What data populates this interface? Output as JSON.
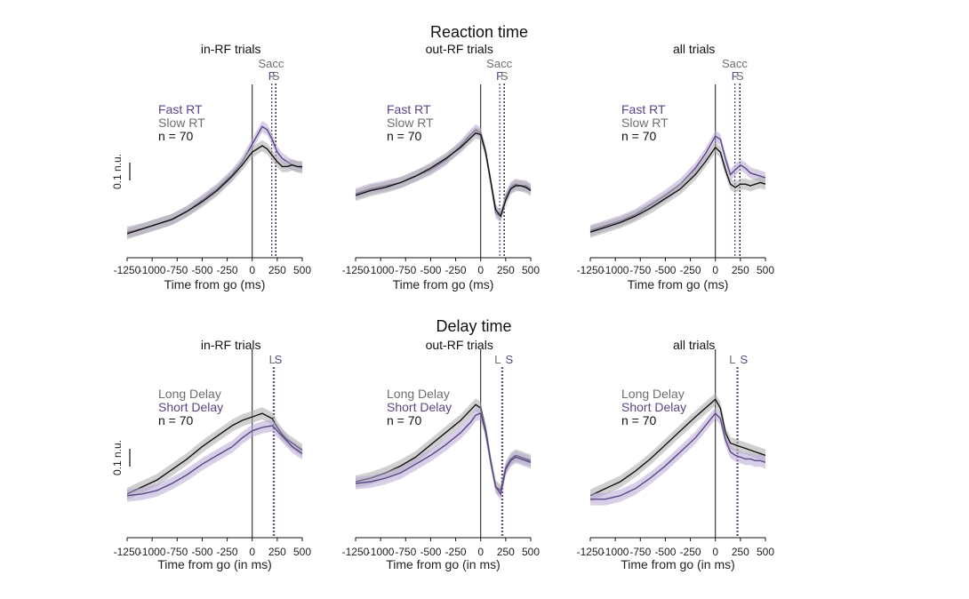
{
  "colors": {
    "fast": "#5b4585",
    "slow": "#6e6e6e",
    "black": "#111111",
    "band_fast": "#b7a6d4",
    "band_slow": "#a9a9a9"
  },
  "rows": [
    {
      "title": "Reaction time",
      "scale_label": "0.1 n.u."
    },
    {
      "title": "Delay time",
      "scale_label": "0.1 n.u."
    }
  ],
  "chart_data": [
    {
      "type": "line",
      "title": "in-RF trials",
      "row": 0,
      "xlabel": "Time from go (ms)",
      "xlim": [
        -1250,
        500
      ],
      "xticks": [
        -1250,
        -1000,
        -750,
        -500,
        -250,
        0,
        250,
        500
      ],
      "xtick_labels": [
        "-1250",
        "-1000",
        "-750",
        "-500",
        "-250",
        "0",
        "250",
        "500"
      ],
      "vlines": [
        {
          "x": 0,
          "style": "solid"
        },
        {
          "x": 195,
          "style": "dotted",
          "color": "fast"
        },
        {
          "x": 235,
          "style": "dotted",
          "color": "black"
        }
      ],
      "markers": {
        "header": "Sacc",
        "items": [
          {
            "label": "F",
            "x": 195,
            "color": "fast"
          },
          {
            "label": "S",
            "x": 235,
            "color": "slow"
          }
        ]
      },
      "legend": [
        {
          "text": "Fast RT",
          "color": "fast"
        },
        {
          "text": "Slow RT",
          "color": "slow"
        },
        {
          "text": "n = 70",
          "color": "black"
        }
      ],
      "series": [
        {
          "name": "Fast RT",
          "color": "fast",
          "x": [
            -1250,
            -1100,
            -950,
            -800,
            -650,
            -500,
            -350,
            -200,
            -100,
            0,
            100,
            150,
            200,
            250,
            300,
            350,
            400,
            450,
            500
          ],
          "y": [
            0.16,
            0.18,
            0.21,
            0.24,
            0.29,
            0.36,
            0.43,
            0.52,
            0.6,
            0.71,
            0.82,
            0.8,
            0.74,
            0.66,
            0.62,
            0.6,
            0.58,
            0.57,
            0.56
          ]
        },
        {
          "name": "Slow RT",
          "color": "black",
          "x": [
            -1250,
            -1100,
            -950,
            -800,
            -650,
            -500,
            -350,
            -200,
            -100,
            0,
            100,
            150,
            200,
            250,
            300,
            350,
            400,
            450,
            500
          ],
          "y": [
            0.15,
            0.18,
            0.21,
            0.24,
            0.29,
            0.35,
            0.42,
            0.51,
            0.58,
            0.66,
            0.7,
            0.68,
            0.64,
            0.6,
            0.57,
            0.57,
            0.58,
            0.57,
            0.57
          ]
        }
      ]
    },
    {
      "type": "line",
      "title": "out-RF trials",
      "row": 0,
      "xlabel": "Time from go (ms)",
      "xlim": [
        -1250,
        500
      ],
      "xticks": [
        -1250,
        -1000,
        -750,
        -500,
        -250,
        0,
        250,
        500
      ],
      "xtick_labels": [
        "-1250",
        "-1000",
        "-750",
        "-500",
        "-250",
        "0",
        "250",
        "500"
      ],
      "vlines": [
        {
          "x": 0,
          "style": "solid"
        },
        {
          "x": 190,
          "style": "dotted",
          "color": "fast"
        },
        {
          "x": 235,
          "style": "dotted",
          "color": "black"
        }
      ],
      "markers": {
        "header": "Sacc",
        "items": [
          {
            "label": "F",
            "x": 190,
            "color": "fast"
          },
          {
            "label": "S",
            "x": 235,
            "color": "slow"
          }
        ]
      },
      "legend": [
        {
          "text": "Fast RT",
          "color": "fast"
        },
        {
          "text": "Slow RT",
          "color": "slow"
        },
        {
          "text": "n = 70",
          "color": "black"
        }
      ],
      "series": [
        {
          "name": "Fast RT",
          "color": "fast",
          "x": [
            -1250,
            -1100,
            -950,
            -800,
            -650,
            -500,
            -350,
            -200,
            -100,
            -50,
            0,
            50,
            100,
            150,
            200,
            250,
            300,
            350,
            400,
            450,
            500
          ],
          "y": [
            0.4,
            0.43,
            0.45,
            0.47,
            0.51,
            0.55,
            0.61,
            0.7,
            0.77,
            0.8,
            0.78,
            0.66,
            0.47,
            0.28,
            0.26,
            0.38,
            0.44,
            0.46,
            0.45,
            0.45,
            0.43
          ]
        },
        {
          "name": "Slow RT",
          "color": "black",
          "x": [
            -1250,
            -1100,
            -950,
            -800,
            -650,
            -500,
            -350,
            -200,
            -100,
            -50,
            0,
            50,
            100,
            150,
            200,
            250,
            300,
            350,
            400,
            450,
            500
          ],
          "y": [
            0.39,
            0.42,
            0.44,
            0.47,
            0.51,
            0.56,
            0.62,
            0.69,
            0.75,
            0.78,
            0.77,
            0.66,
            0.48,
            0.3,
            0.26,
            0.36,
            0.43,
            0.45,
            0.45,
            0.44,
            0.42
          ]
        }
      ]
    },
    {
      "type": "line",
      "title": "all trials",
      "row": 0,
      "xlabel": "Time from go (ms)",
      "xlim": [
        -1250,
        500
      ],
      "xticks": [
        -1250,
        -1000,
        -750,
        -500,
        -250,
        0,
        250,
        500
      ],
      "xtick_labels": [
        "-1250",
        "-1000",
        "-750",
        "-500",
        "-250",
        "0",
        "250",
        "500"
      ],
      "vlines": [
        {
          "x": 0,
          "style": "solid"
        },
        {
          "x": 195,
          "style": "dotted",
          "color": "fast"
        },
        {
          "x": 245,
          "style": "dotted",
          "color": "black"
        }
      ],
      "markers": {
        "header": "Sacc",
        "items": [
          {
            "label": "F",
            "x": 195,
            "color": "fast"
          },
          {
            "label": "S",
            "x": 245,
            "color": "slow"
          }
        ]
      },
      "legend": [
        {
          "text": "Fast RT",
          "color": "fast"
        },
        {
          "text": "Slow RT",
          "color": "slow"
        },
        {
          "text": "n = 70",
          "color": "black"
        }
      ],
      "series": [
        {
          "name": "Fast RT",
          "color": "fast",
          "x": [
            -1250,
            -1100,
            -950,
            -800,
            -650,
            -500,
            -350,
            -200,
            -100,
            0,
            50,
            100,
            150,
            200,
            250,
            300,
            350,
            400,
            450,
            500
          ],
          "y": [
            0.17,
            0.2,
            0.23,
            0.27,
            0.33,
            0.39,
            0.46,
            0.56,
            0.65,
            0.76,
            0.74,
            0.62,
            0.52,
            0.55,
            0.58,
            0.56,
            0.53,
            0.52,
            0.51,
            0.5
          ]
        },
        {
          "name": "Slow RT",
          "color": "black",
          "x": [
            -1250,
            -1100,
            -950,
            -800,
            -650,
            -500,
            -350,
            -200,
            -100,
            0,
            50,
            100,
            150,
            200,
            250,
            300,
            350,
            400,
            450,
            500
          ],
          "y": [
            0.16,
            0.19,
            0.22,
            0.26,
            0.31,
            0.37,
            0.43,
            0.52,
            0.6,
            0.69,
            0.66,
            0.55,
            0.46,
            0.44,
            0.46,
            0.46,
            0.45,
            0.46,
            0.47,
            0.46
          ]
        }
      ]
    },
    {
      "type": "line",
      "title": "in-RF trials",
      "row": 1,
      "xlabel": "Time from go (in ms)",
      "xlim": [
        -1250,
        500
      ],
      "xticks": [
        -1250,
        -1000,
        -750,
        -500,
        -250,
        0,
        250,
        500
      ],
      "xtick_labels": [
        "-1250",
        "-1000",
        "-750",
        "-500",
        "-250",
        "0",
        "250",
        "500"
      ],
      "vlines": [
        {
          "x": 0,
          "style": "solid"
        },
        {
          "x": 210,
          "style": "dotted",
          "color": "slow"
        },
        {
          "x": 220,
          "style": "dotted",
          "color": "fast"
        }
      ],
      "markers": {
        "header": "",
        "items": [
          {
            "label": "L",
            "x": 200,
            "color": "slow"
          },
          {
            "label": "S",
            "x": 260,
            "color": "fast"
          }
        ]
      },
      "legend": [
        {
          "text": "Long Delay",
          "color": "slow"
        },
        {
          "text": "Short Delay",
          "color": "fast"
        },
        {
          "text": "n = 70",
          "color": "black"
        }
      ],
      "series": [
        {
          "name": "Long Delay",
          "color": "black",
          "x": [
            -1250,
            -1100,
            -950,
            -800,
            -650,
            -500,
            -350,
            -200,
            -100,
            0,
            100,
            200,
            250,
            300,
            350,
            400,
            450,
            500
          ],
          "y": [
            0.25,
            0.29,
            0.33,
            0.39,
            0.45,
            0.52,
            0.58,
            0.64,
            0.67,
            0.69,
            0.71,
            0.68,
            0.63,
            0.59,
            0.56,
            0.54,
            0.52,
            0.5
          ]
        },
        {
          "name": "Short Delay",
          "color": "fast",
          "x": [
            -1250,
            -1100,
            -950,
            -800,
            -650,
            -500,
            -350,
            -200,
            -100,
            0,
            100,
            200,
            250,
            300,
            350,
            400,
            450,
            500
          ],
          "y": [
            0.24,
            0.25,
            0.27,
            0.31,
            0.36,
            0.42,
            0.47,
            0.52,
            0.57,
            0.61,
            0.63,
            0.64,
            0.61,
            0.58,
            0.55,
            0.52,
            0.5,
            0.48
          ]
        }
      ]
    },
    {
      "type": "line",
      "title": "out-RF trials",
      "row": 1,
      "xlabel": "Time from go (in ms)",
      "xlim": [
        -1250,
        500
      ],
      "xticks": [
        -1250,
        -1000,
        -750,
        -500,
        -250,
        0,
        250,
        500
      ],
      "xtick_labels": [
        "-1250",
        "-1000",
        "-750",
        "-500",
        "-250",
        "0",
        "250",
        "500"
      ],
      "vlines": [
        {
          "x": 0,
          "style": "solid"
        },
        {
          "x": 210,
          "style": "dotted",
          "color": "slow"
        },
        {
          "x": 220,
          "style": "dotted",
          "color": "fast"
        }
      ],
      "markers": {
        "header": "",
        "items": [
          {
            "label": "L",
            "x": 170,
            "color": "slow"
          },
          {
            "label": "S",
            "x": 285,
            "color": "fast"
          }
        ]
      },
      "legend": [
        {
          "text": "Long Delay",
          "color": "slow"
        },
        {
          "text": "Short Delay",
          "color": "fast"
        },
        {
          "text": "n = 70",
          "color": "black"
        }
      ],
      "series": [
        {
          "name": "Long Delay",
          "color": "black",
          "x": [
            -1250,
            -1100,
            -950,
            -800,
            -650,
            -500,
            -350,
            -200,
            -100,
            -50,
            0,
            50,
            100,
            150,
            200,
            250,
            300,
            350,
            400,
            450,
            500
          ],
          "y": [
            0.32,
            0.34,
            0.37,
            0.41,
            0.46,
            0.53,
            0.6,
            0.67,
            0.73,
            0.76,
            0.74,
            0.62,
            0.44,
            0.29,
            0.27,
            0.4,
            0.45,
            0.47,
            0.46,
            0.45,
            0.44
          ]
        },
        {
          "name": "Short Delay",
          "color": "fast",
          "x": [
            -1250,
            -1100,
            -950,
            -800,
            -650,
            -500,
            -350,
            -200,
            -100,
            -50,
            0,
            50,
            100,
            150,
            200,
            250,
            300,
            350,
            400,
            450,
            500
          ],
          "y": [
            0.31,
            0.32,
            0.34,
            0.37,
            0.42,
            0.47,
            0.53,
            0.6,
            0.66,
            0.7,
            0.71,
            0.6,
            0.43,
            0.29,
            0.25,
            0.39,
            0.44,
            0.46,
            0.45,
            0.44,
            0.43
          ]
        }
      ]
    },
    {
      "type": "line",
      "title": "all trials",
      "row": 1,
      "xlabel": "Time from go (in ms)",
      "xlim": [
        -1250,
        500
      ],
      "xticks": [
        -1250,
        -1000,
        -750,
        -500,
        -250,
        0,
        250,
        500
      ],
      "xtick_labels": [
        "-1250",
        "-1000",
        "-750",
        "-500",
        "-250",
        "0",
        "250",
        "500"
      ],
      "vlines": [
        {
          "x": 0,
          "style": "solid"
        },
        {
          "x": 215,
          "style": "dotted",
          "color": "slow"
        },
        {
          "x": 225,
          "style": "dotted",
          "color": "fast"
        }
      ],
      "markers": {
        "header": "",
        "items": [
          {
            "label": "L",
            "x": 170,
            "color": "slow"
          },
          {
            "label": "S",
            "x": 285,
            "color": "fast"
          }
        ]
      },
      "legend": [
        {
          "text": "Long Delay",
          "color": "slow"
        },
        {
          "text": "Short Delay",
          "color": "fast"
        },
        {
          "text": "n = 70",
          "color": "black"
        }
      ],
      "series": [
        {
          "name": "Long Delay",
          "color": "black",
          "x": [
            -1250,
            -1100,
            -950,
            -800,
            -650,
            -500,
            -350,
            -200,
            -100,
            0,
            50,
            100,
            150,
            200,
            250,
            300,
            350,
            400,
            450,
            500
          ],
          "y": [
            0.24,
            0.28,
            0.32,
            0.38,
            0.45,
            0.53,
            0.61,
            0.69,
            0.74,
            0.79,
            0.74,
            0.6,
            0.54,
            0.53,
            0.52,
            0.51,
            0.5,
            0.49,
            0.48,
            0.47
          ]
        },
        {
          "name": "Short Delay",
          "color": "fast",
          "x": [
            -1250,
            -1100,
            -950,
            -800,
            -650,
            -500,
            -350,
            -200,
            -100,
            0,
            50,
            100,
            150,
            200,
            250,
            300,
            350,
            400,
            450,
            500
          ],
          "y": [
            0.22,
            0.22,
            0.24,
            0.28,
            0.34,
            0.41,
            0.49,
            0.57,
            0.64,
            0.71,
            0.68,
            0.56,
            0.49,
            0.47,
            0.46,
            0.45,
            0.45,
            0.44,
            0.44,
            0.43
          ]
        }
      ]
    }
  ]
}
